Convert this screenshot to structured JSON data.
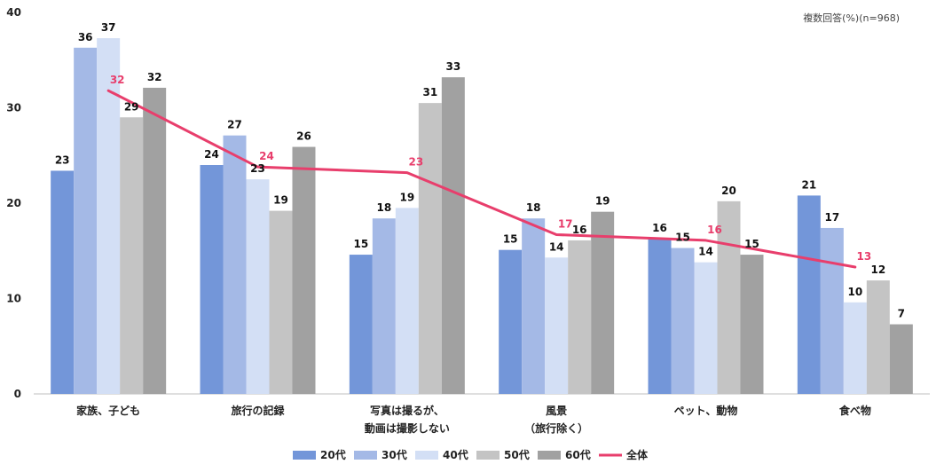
{
  "chart_data": {
    "type": "bar",
    "note": "複数回答(%)(n=968)",
    "categories": [
      [
        "家族、子ども"
      ],
      [
        "旅行の記録"
      ],
      [
        "写真は撮るが、",
        "動画は撮影しない"
      ],
      [
        "風景",
        "（旅行除く）"
      ],
      [
        "ペット、動物"
      ],
      [
        "食べ物"
      ]
    ],
    "series": [
      {
        "name": "20代",
        "color": "#7396d9",
        "values": [
          23,
          24,
          15,
          15,
          16,
          21
        ]
      },
      {
        "name": "30代",
        "color": "#a4b9e6",
        "values": [
          36,
          27,
          18,
          18,
          15,
          17
        ]
      },
      {
        "name": "40代",
        "color": "#d3dff5",
        "values": [
          37,
          23,
          19,
          14,
          14,
          10
        ]
      },
      {
        "name": "50代",
        "color": "#c4c4c4",
        "values": [
          29,
          19,
          31,
          16,
          20,
          12
        ]
      },
      {
        "name": "60代",
        "color": "#a1a1a1",
        "values": [
          32,
          26,
          33,
          19,
          15,
          7
        ]
      }
    ],
    "total_line": {
      "name": "全体",
      "color": "#e83e6c",
      "values": [
        32,
        24,
        23,
        17,
        16,
        13
      ]
    },
    "bar_heights": [
      [
        23.4,
        24.0,
        14.6,
        15.1,
        16.3,
        20.8
      ],
      [
        36.3,
        27.1,
        18.4,
        18.4,
        15.3,
        17.4
      ],
      [
        37.3,
        22.5,
        19.5,
        14.3,
        13.8,
        9.6
      ],
      [
        29.0,
        19.2,
        30.5,
        16.1,
        20.2,
        11.9
      ],
      [
        32.1,
        25.9,
        33.2,
        19.1,
        14.6,
        7.3
      ]
    ],
    "y_ticks": [
      0,
      10,
      20,
      30,
      40
    ],
    "ylim": [
      0,
      40
    ],
    "legend_position": "bottom-center",
    "grid": false
  }
}
